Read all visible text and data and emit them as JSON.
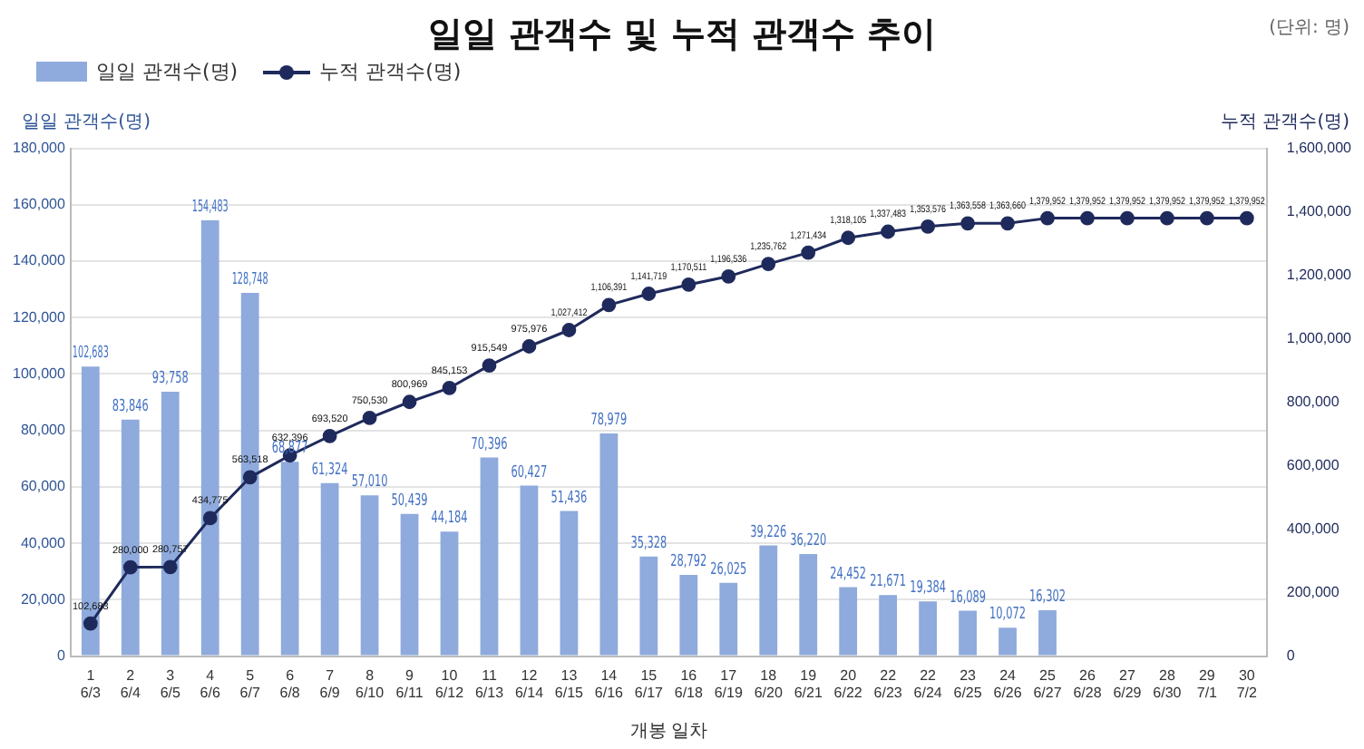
{
  "chart_data": {
    "type": "bar",
    "title": "일일 관객수 및 누적 관객수 추이",
    "xlabel": "개봉 일차",
    "ylabel": "일일 관객수(명)",
    "y2label": "누적 관객수(명)",
    "annotations": [
      "(단위: 명)"
    ],
    "categories": [
      "1\n6/3",
      "2\n6/4",
      "3\n6/5",
      "4\n6/6",
      "5\n6/7",
      "6\n6/8",
      "7\n6/9",
      "8\n6/10",
      "9\n6/11",
      "10\n6/12",
      "11\n6/13",
      "12\n6/14",
      "13\n6/15",
      "14\n6/16",
      "15\n6/17",
      "16\n6/18",
      "17\n6/19",
      "18\n6/20",
      "19\n6/21",
      "20\n6/22",
      "22\n6/23",
      "22\n6/24",
      "23\n6/25",
      "24\n6/26",
      "25\n6/27",
      "26\n6/28",
      "27\n6/29",
      "28\n6/30",
      "29\n7/1",
      "30\n7/2"
    ],
    "series": [
      {
        "name": "일일 관객수(명)",
        "color": "#8faadc",
        "values": [
          102683,
          83846,
          93758,
          154483,
          128748,
          68877,
          61324,
          57010,
          50439,
          44184,
          70396,
          60427,
          51436,
          78979,
          35328,
          28792,
          26025,
          39226,
          36220,
          24452,
          21671,
          19384,
          16089,
          10072,
          16302,
          null,
          null,
          null,
          null,
          null
        ],
        "value_labels": [
          "102,683",
          "83,846",
          "93,758",
          "154,483",
          "128,748",
          "68,877",
          "61,324",
          "57,010",
          "50,439",
          "44,184",
          "70,396",
          "60,427",
          "51,436",
          "78,979",
          "35,328",
          "28,792",
          "26,025",
          "39,226",
          "36,220",
          "24,452",
          "21,671",
          "19,384",
          "16,089",
          "10,072",
          "16,302",
          null,
          null,
          null,
          null,
          null
        ]
      },
      {
        "name": "누적 관객수(명)",
        "type": "line",
        "axis": "y2",
        "color": "#1f2a5c",
        "marker": "circle",
        "values": [
          102683,
          280000,
          280757,
          434775,
          563518,
          632396,
          693520,
          750530,
          800969,
          845153,
          915549,
          975976,
          1027412,
          1106391,
          1141719,
          1170511,
          1196536,
          1235762,
          1271434,
          1318105,
          1337483,
          1353576,
          1363558,
          1363660,
          1379952,
          1379952,
          1379952,
          1379952,
          1379952,
          1379952
        ],
        "value_labels": [
          "102,683",
          "280,000",
          "280,757",
          "434,775",
          "563,518",
          "632,396",
          "693,520",
          "750,530",
          "800,969",
          "845,153",
          "915,549",
          "975,976",
          "1,027,412",
          "1,106,391",
          "1,141,719",
          "1,170,511",
          "1,196,536",
          "1,235,762",
          "1,271,434",
          "1,318,105",
          "1,337,483",
          "1,353,576",
          "1,363,558",
          "1,363,660",
          "1,379,952",
          "1,379,952",
          "1,379,952",
          "1,379,952",
          "1,379,952",
          "1,379,952"
        ]
      }
    ],
    "ylim": [
      0,
      180000
    ],
    "yticks": [
      0,
      {
        "value": 20000,
        "label": "20,000"
      },
      {
        "value": 40000,
        "label": "40,000"
      },
      {
        "value": 60000,
        "label": "60,000"
      },
      {
        "value": 80000,
        "label": "80,000"
      },
      {
        "value": 100000,
        "label": "100,000"
      },
      {
        "value": 120000,
        "label": "120,000"
      },
      {
        "value": 140000,
        "label": "140,000"
      },
      {
        "value": 160000,
        "label": "160,000"
      },
      {
        "value": 180000,
        "label": "180,000"
      }
    ],
    "y2lim": [
      0,
      1600000
    ],
    "y2ticks": [
      0,
      {
        "value": 200000,
        "label": "200,000"
      },
      {
        "value": 400000,
        "label": "400,000"
      },
      {
        "value": 600000,
        "label": "600,000"
      },
      {
        "value": 800000,
        "label": "800,000"
      },
      {
        "value": 1000000,
        "label": "1,000,000"
      },
      {
        "value": 1200000,
        "label": "1,200,000"
      },
      {
        "value": 1400000,
        "label": "1,400,000"
      },
      {
        "value": 1600000,
        "label": "1,600,000"
      }
    ],
    "grid": "y",
    "legend": "top left"
  }
}
